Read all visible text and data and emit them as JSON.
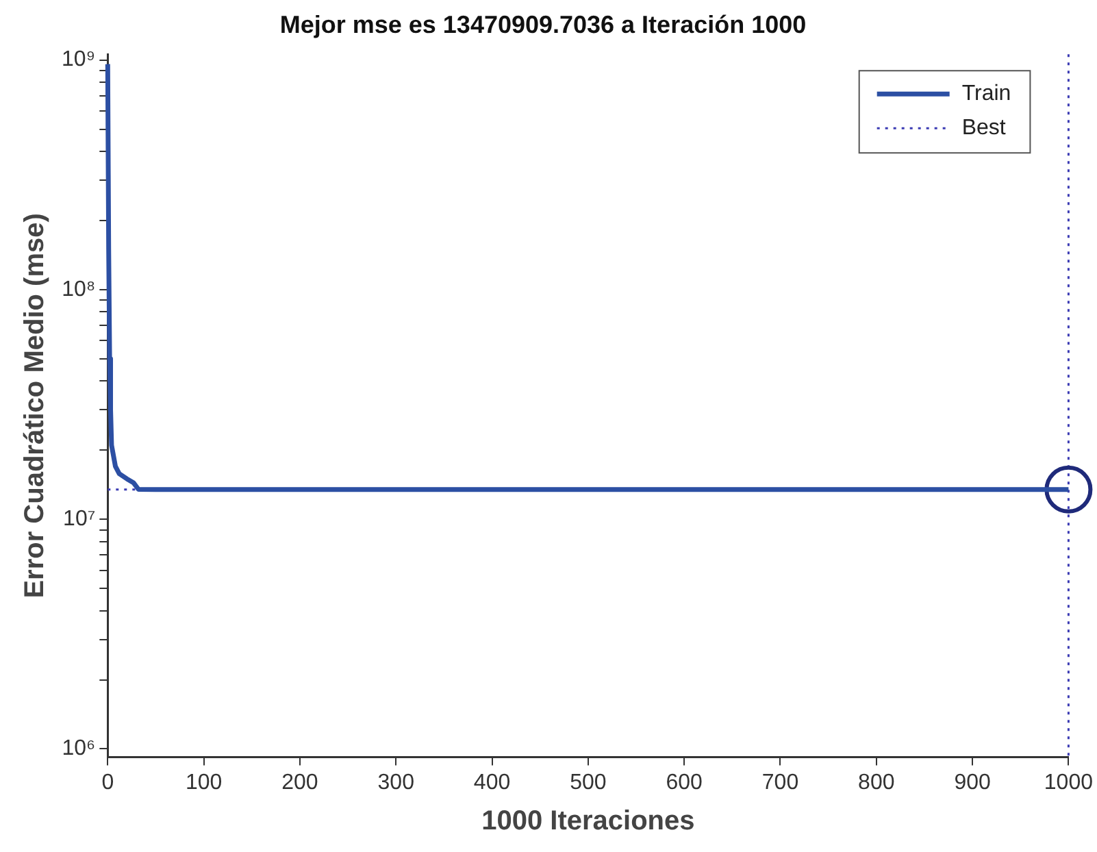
{
  "chart_data": {
    "type": "line",
    "title": "Mejor mse es 13470909.7036 a Iteración 1000",
    "xlabel": "1000 Iteraciones",
    "ylabel": "Error Cuadrático Medio (mse)",
    "log": "y",
    "grid": false,
    "legend": "top right",
    "xlim": [
      0,
      1000
    ],
    "xticks": [
      0,
      100,
      200,
      300,
      400,
      500,
      600,
      700,
      800,
      900,
      1000
    ],
    "ylim": [
      920000,
      1060000000
    ],
    "yticks": [
      {
        "value": 1000000,
        "label": "10⁶"
      },
      {
        "value": 2000000,
        "label": null
      },
      {
        "value": 3000000,
        "label": null
      },
      {
        "value": 4000000,
        "label": null
      },
      {
        "value": 5000000,
        "label": null
      },
      {
        "value": 6000000,
        "label": null
      },
      {
        "value": 7000000,
        "label": null
      },
      {
        "value": 8000000,
        "label": null
      },
      {
        "value": 9000000,
        "label": null
      },
      {
        "value": 10000000,
        "label": "10⁷"
      },
      {
        "value": 20000000,
        "label": null
      },
      {
        "value": 30000000,
        "label": null
      },
      {
        "value": 40000000,
        "label": null
      },
      {
        "value": 50000000,
        "label": null
      },
      {
        "value": 60000000,
        "label": null
      },
      {
        "value": 70000000,
        "label": null
      },
      {
        "value": 80000000,
        "label": null
      },
      {
        "value": 90000000,
        "label": null
      },
      {
        "value": 100000000,
        "label": "10⁸"
      },
      {
        "value": 200000000,
        "label": null
      },
      {
        "value": 300000000,
        "label": null
      },
      {
        "value": 400000000,
        "label": null
      },
      {
        "value": 500000000,
        "label": null
      },
      {
        "value": 600000000,
        "label": null
      },
      {
        "value": 700000000,
        "label": null
      },
      {
        "value": 800000000,
        "label": null
      },
      {
        "value": 900000000,
        "label": null
      },
      {
        "value": 1000000000,
        "label": "10⁹"
      }
    ],
    "series": [
      {
        "name": "Train",
        "type": "line",
        "color": "#2c4fa3",
        "line_style": "solid",
        "marker": "none",
        "x": [
          0,
          1,
          2,
          3,
          4,
          8,
          12,
          20,
          27,
          32,
          50,
          1000
        ],
        "values": [
          960000000,
          150000000,
          50000000,
          30000000,
          21000000,
          17000000,
          15800000,
          15000000,
          14400000,
          13500000,
          13480000,
          13470909.7036
        ]
      },
      {
        "type": "scatter",
        "color": "#1f2a7a",
        "marker": "circle",
        "x": [
          1000
        ],
        "values": [
          13470909.7036
        ]
      }
    ],
    "ref_lines": [
      {
        "axis": "x",
        "value": 1000,
        "label": "Best",
        "color": "#3b3bb3",
        "line_style": "dotted"
      },
      {
        "axis": "y",
        "value": 13470909.7036,
        "color": "#3b3bb3",
        "line_style": "dotted"
      }
    ]
  }
}
